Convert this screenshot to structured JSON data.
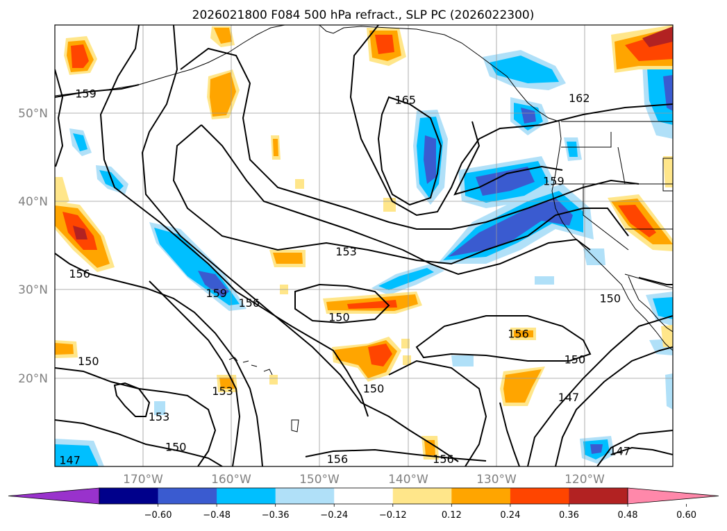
{
  "title": "2026021800 F084 500 hPa refract., SLP PC (2026022300)",
  "map": {
    "lat_labels": [
      "50°N",
      "40°N",
      "30°N",
      "20°N"
    ],
    "lon_labels": [
      "170°W",
      "160°W",
      "150°W",
      "140°W",
      "130°W",
      "120°W"
    ],
    "gridlines": true
  },
  "contour_labels": [
    {
      "text": "159",
      "x": -176.5,
      "y": 52.1
    },
    {
      "text": "165",
      "x": -140.3,
      "y": 51.4
    },
    {
      "text": "162",
      "x": -120.6,
      "y": 51.6
    },
    {
      "text": "159",
      "x": -123.5,
      "y": 42.2
    },
    {
      "text": "153",
      "x": -147.0,
      "y": 34.2
    },
    {
      "text": "156",
      "x": -177.2,
      "y": 31.7
    },
    {
      "text": "159",
      "x": -161.7,
      "y": 29.5
    },
    {
      "text": "156",
      "x": -158.0,
      "y": 28.4
    },
    {
      "text": "150",
      "x": -147.8,
      "y": 26.8
    },
    {
      "text": "150",
      "x": -117.1,
      "y": 28.9
    },
    {
      "text": "156",
      "x": -127.5,
      "y": 24.9
    },
    {
      "text": "150",
      "x": -176.2,
      "y": 21.8
    },
    {
      "text": "150",
      "x": -143.9,
      "y": 18.7
    },
    {
      "text": "150",
      "x": -121.1,
      "y": 22.0
    },
    {
      "text": "153",
      "x": -161.0,
      "y": 18.4
    },
    {
      "text": "153",
      "x": -168.2,
      "y": 15.5
    },
    {
      "text": "147",
      "x": -121.8,
      "y": 17.7
    },
    {
      "text": "150",
      "x": -166.3,
      "y": 12.1
    },
    {
      "text": "147",
      "x": -178.3,
      "y": 10.6
    },
    {
      "text": "156",
      "x": -148.0,
      "y": 10.7
    },
    {
      "text": "156",
      "x": -136.0,
      "y": 10.7
    },
    {
      "text": "147",
      "x": -116.0,
      "y": 11.6
    }
  ],
  "colorbar": {
    "ticks": [
      "−0.60",
      "−0.48",
      "−0.36",
      "−0.24",
      "−0.12",
      "0.12",
      "0.24",
      "0.36",
      "0.48",
      "0.60"
    ],
    "colors": [
      "#9932cc",
      "#00008b",
      "#3a5bd0",
      "#00bfff",
      "#b0e0f8",
      "#ffffff",
      "#ffe68a",
      "#ffa500",
      "#ff4500",
      "#b22222",
      "#ff88aa"
    ]
  }
}
